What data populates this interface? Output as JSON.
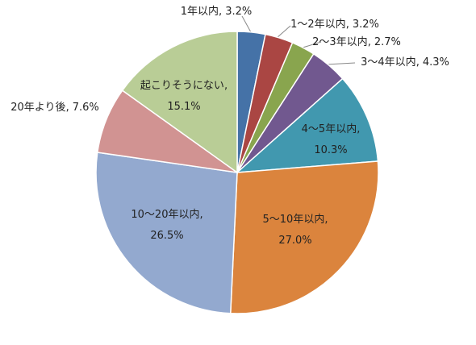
{
  "chart_data": {
    "type": "pie",
    "categories": [
      "1年以内",
      "1～2年以内",
      "2～3年以内",
      "3～4年以内",
      "4～5年以内",
      "5～10年以内",
      "10～20年以内",
      "20年より後",
      "起こりそうにない"
    ],
    "values": [
      3.2,
      3.2,
      2.7,
      4.3,
      10.3,
      27.0,
      26.5,
      7.6,
      15.1
    ],
    "value_labels": [
      "3.2%",
      "3.2%",
      "2.7%",
      "4.3%",
      "10.3%",
      "27.0%",
      "26.5%",
      "7.6%",
      "15.1%"
    ],
    "separator": ",",
    "colors": [
      "#4572a7",
      "#aa4643",
      "#89a54e",
      "#71588f",
      "#4198af",
      "#db843d",
      "#93a9cf",
      "#d19392",
      "#b9cd96"
    ]
  }
}
